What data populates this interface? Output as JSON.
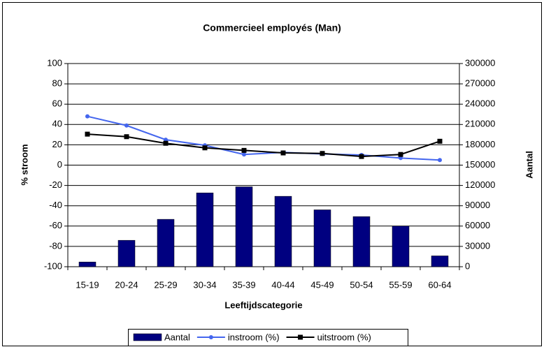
{
  "chart_data": {
    "type": "bar",
    "title": "Commercieel employés (Man)",
    "x_label": "Leeftijdscategorie",
    "y_label": "% stroom",
    "y2_label": "Aantal",
    "categories": [
      "15-19",
      "20-24",
      "25-29",
      "30-34",
      "35-39",
      "40-44",
      "45-49",
      "50-54",
      "55-59",
      "60-64"
    ],
    "series": [
      {
        "name": "Aantal",
        "type": "bar",
        "axis": "y2",
        "color": "#000080",
        "values": [
          7000,
          39000,
          70000,
          109000,
          118000,
          104000,
          84000,
          74000,
          60000,
          16000
        ]
      },
      {
        "name": "instroom (%)",
        "type": "line",
        "marker": "circle",
        "color": "#4466ee",
        "values": [
          48,
          39,
          25,
          19.5,
          10.5,
          12.5,
          11,
          10,
          7,
          5
        ]
      },
      {
        "name": "uitstroom (%)",
        "type": "line",
        "marker": "square",
        "color": "#000000",
        "values": [
          30.5,
          28,
          21.5,
          17,
          14.5,
          12,
          11.5,
          8.5,
          10.5,
          23.5
        ]
      }
    ],
    "ylim": [
      -100,
      100
    ],
    "yticks": [
      -100,
      -80,
      -60,
      -40,
      -20,
      0,
      20,
      40,
      60,
      80,
      100
    ],
    "y2lim": [
      0,
      300000
    ],
    "y2ticks": [
      0,
      30000,
      60000,
      90000,
      120000,
      150000,
      180000,
      210000,
      240000,
      270000,
      300000
    ],
    "grid": true,
    "legend": "bottom"
  }
}
